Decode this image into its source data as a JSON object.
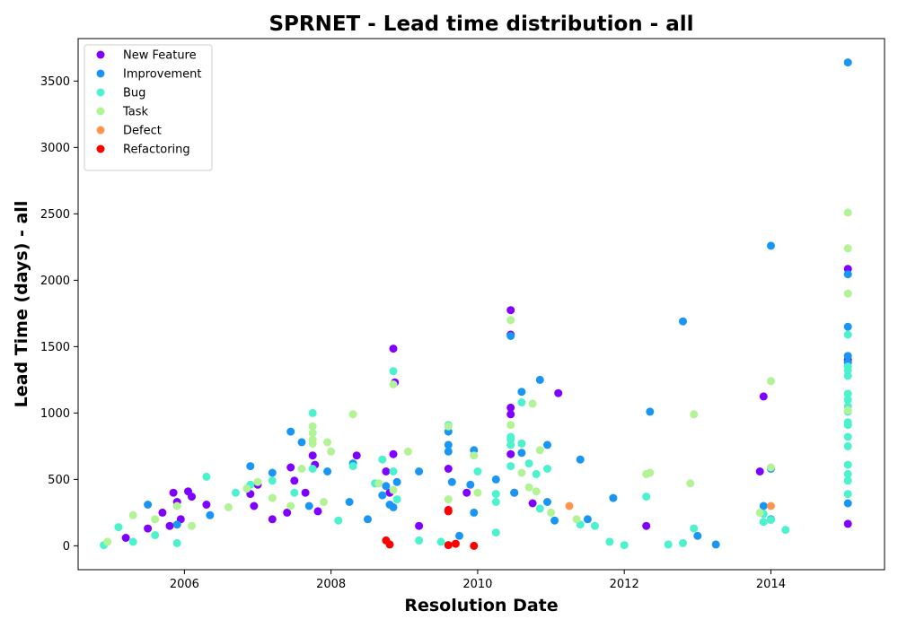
{
  "chart_data": {
    "type": "scatter",
    "title": "SPRNET - Lead time distribution - all",
    "xlabel": "Resolution Date",
    "ylabel": "Lead Time (days) - all",
    "xlim": [
      2004.55,
      2015.55
    ],
    "ylim": [
      -180,
      3820
    ],
    "x_ticks": [
      2006,
      2008,
      2010,
      2012,
      2014
    ],
    "y_ticks": [
      0,
      500,
      1000,
      1500,
      2000,
      2500,
      3000,
      3500
    ],
    "grid": false,
    "legend_position": "top-left",
    "series": [
      {
        "name": "New Feature",
        "color": "#8000ff",
        "points": [
          [
            2005.2,
            60
          ],
          [
            2005.5,
            130
          ],
          [
            2005.7,
            250
          ],
          [
            2005.8,
            150
          ],
          [
            2005.85,
            400
          ],
          [
            2005.9,
            330
          ],
          [
            2005.95,
            200
          ],
          [
            2006.05,
            410
          ],
          [
            2006.1,
            370
          ],
          [
            2006.3,
            310
          ],
          [
            2006.9,
            390
          ],
          [
            2006.95,
            300
          ],
          [
            2007.0,
            460
          ],
          [
            2007.2,
            200
          ],
          [
            2007.4,
            250
          ],
          [
            2007.45,
            590
          ],
          [
            2007.5,
            490
          ],
          [
            2007.65,
            400
          ],
          [
            2007.75,
            680
          ],
          [
            2007.78,
            610
          ],
          [
            2007.82,
            260
          ],
          [
            2008.35,
            680
          ],
          [
            2008.75,
            560
          ],
          [
            2008.8,
            400
          ],
          [
            2008.85,
            1485
          ],
          [
            2008.85,
            690
          ],
          [
            2008.87,
            1230
          ],
          [
            2009.2,
            150
          ],
          [
            2009.6,
            580
          ],
          [
            2009.85,
            400
          ],
          [
            2010.45,
            1775
          ],
          [
            2010.45,
            1590
          ],
          [
            2010.45,
            1040
          ],
          [
            2010.45,
            990
          ],
          [
            2010.45,
            690
          ],
          [
            2010.5,
            400
          ],
          [
            2010.75,
            320
          ],
          [
            2011.1,
            1150
          ],
          [
            2012.3,
            150
          ],
          [
            2013.9,
            1125
          ],
          [
            2013.85,
            560
          ],
          [
            2015.05,
            2085
          ],
          [
            2015.05,
            1400
          ],
          [
            2015.05,
            165
          ]
        ]
      },
      {
        "name": "Improvement",
        "color": "#1996f3",
        "points": [
          [
            2005.5,
            310
          ],
          [
            2005.9,
            160
          ],
          [
            2006.35,
            230
          ],
          [
            2006.9,
            600
          ],
          [
            2007.2,
            550
          ],
          [
            2007.45,
            860
          ],
          [
            2007.6,
            780
          ],
          [
            2007.7,
            300
          ],
          [
            2007.95,
            560
          ],
          [
            2008.25,
            330
          ],
          [
            2008.3,
            620
          ],
          [
            2008.5,
            200
          ],
          [
            2008.7,
            380
          ],
          [
            2008.75,
            450
          ],
          [
            2008.8,
            310
          ],
          [
            2008.85,
            290
          ],
          [
            2008.9,
            480
          ],
          [
            2009.2,
            560
          ],
          [
            2009.6,
            860
          ],
          [
            2009.6,
            760
          ],
          [
            2009.6,
            710
          ],
          [
            2009.65,
            480
          ],
          [
            2009.75,
            75
          ],
          [
            2009.9,
            460
          ],
          [
            2009.95,
            250
          ],
          [
            2009.95,
            720
          ],
          [
            2010.25,
            500
          ],
          [
            2010.45,
            1580
          ],
          [
            2010.5,
            400
          ],
          [
            2010.6,
            1160
          ],
          [
            2010.6,
            700
          ],
          [
            2010.85,
            1250
          ],
          [
            2010.95,
            760
          ],
          [
            2010.95,
            330
          ],
          [
            2011.05,
            190
          ],
          [
            2011.4,
            650
          ],
          [
            2011.5,
            200
          ],
          [
            2011.85,
            360
          ],
          [
            2012.35,
            1010
          ],
          [
            2012.8,
            1690
          ],
          [
            2013.0,
            75
          ],
          [
            2013.25,
            10
          ],
          [
            2013.9,
            300
          ],
          [
            2014.0,
            2260
          ],
          [
            2014.0,
            580
          ],
          [
            2014.0,
            200
          ],
          [
            2015.05,
            3640
          ],
          [
            2015.05,
            2045
          ],
          [
            2015.05,
            1650
          ],
          [
            2015.05,
            1430
          ],
          [
            2015.05,
            1380
          ],
          [
            2015.05,
            320
          ]
        ]
      },
      {
        "name": "Bug",
        "color": "#4cf2ce",
        "points": [
          [
            2004.9,
            5
          ],
          [
            2005.1,
            140
          ],
          [
            2005.3,
            30
          ],
          [
            2005.6,
            80
          ],
          [
            2005.9,
            20
          ],
          [
            2006.3,
            520
          ],
          [
            2006.7,
            400
          ],
          [
            2006.9,
            460
          ],
          [
            2007.2,
            490
          ],
          [
            2007.5,
            400
          ],
          [
            2007.75,
            1000
          ],
          [
            2007.75,
            580
          ],
          [
            2008.1,
            190
          ],
          [
            2008.3,
            600
          ],
          [
            2008.6,
            470
          ],
          [
            2008.7,
            650
          ],
          [
            2008.85,
            1315
          ],
          [
            2008.85,
            560
          ],
          [
            2008.9,
            350
          ],
          [
            2009.2,
            40
          ],
          [
            2009.5,
            30
          ],
          [
            2009.6,
            910
          ],
          [
            2010.0,
            560
          ],
          [
            2010.25,
            390
          ],
          [
            2010.25,
            330
          ],
          [
            2010.25,
            100
          ],
          [
            2010.45,
            820
          ],
          [
            2010.45,
            800
          ],
          [
            2010.45,
            760
          ],
          [
            2010.45,
            600
          ],
          [
            2010.6,
            770
          ],
          [
            2010.6,
            1080
          ],
          [
            2010.7,
            620
          ],
          [
            2010.8,
            540
          ],
          [
            2010.85,
            280
          ],
          [
            2010.95,
            580
          ],
          [
            2011.4,
            160
          ],
          [
            2011.6,
            150
          ],
          [
            2011.8,
            30
          ],
          [
            2012.0,
            5
          ],
          [
            2012.3,
            370
          ],
          [
            2012.6,
            10
          ],
          [
            2012.8,
            20
          ],
          [
            2012.95,
            130
          ],
          [
            2013.9,
            240
          ],
          [
            2013.9,
            180
          ],
          [
            2014.0,
            195
          ],
          [
            2014.2,
            120
          ],
          [
            2015.05,
            1590
          ],
          [
            2015.05,
            1350
          ],
          [
            2015.05,
            1320
          ],
          [
            2015.05,
            1280
          ],
          [
            2015.05,
            1145
          ],
          [
            2015.05,
            1100
          ],
          [
            2015.05,
            1050
          ],
          [
            2015.05,
            1010
          ],
          [
            2015.05,
            930
          ],
          [
            2015.05,
            910
          ],
          [
            2015.05,
            820
          ],
          [
            2015.05,
            750
          ],
          [
            2015.05,
            610
          ],
          [
            2015.05,
            540
          ],
          [
            2015.05,
            490
          ],
          [
            2015.05,
            390
          ]
        ]
      },
      {
        "name": "Task",
        "color": "#b2f396",
        "points": [
          [
            2004.95,
            30
          ],
          [
            2005.3,
            230
          ],
          [
            2005.6,
            200
          ],
          [
            2005.9,
            300
          ],
          [
            2006.1,
            150
          ],
          [
            2006.6,
            290
          ],
          [
            2006.85,
            430
          ],
          [
            2007.0,
            480
          ],
          [
            2007.2,
            360
          ],
          [
            2007.45,
            300
          ],
          [
            2007.6,
            580
          ],
          [
            2007.75,
            900
          ],
          [
            2007.75,
            850
          ],
          [
            2007.75,
            800
          ],
          [
            2007.75,
            770
          ],
          [
            2007.9,
            330
          ],
          [
            2007.95,
            780
          ],
          [
            2008.0,
            710
          ],
          [
            2008.3,
            990
          ],
          [
            2008.65,
            470
          ],
          [
            2008.85,
            1215
          ],
          [
            2008.85,
            420
          ],
          [
            2009.05,
            710
          ],
          [
            2009.6,
            900
          ],
          [
            2009.6,
            350
          ],
          [
            2009.95,
            680
          ],
          [
            2010.0,
            400
          ],
          [
            2010.45,
            1700
          ],
          [
            2010.45,
            910
          ],
          [
            2010.6,
            550
          ],
          [
            2010.7,
            440
          ],
          [
            2010.75,
            1070
          ],
          [
            2010.8,
            410
          ],
          [
            2010.85,
            720
          ],
          [
            2011.0,
            250
          ],
          [
            2011.35,
            200
          ],
          [
            2012.3,
            540
          ],
          [
            2012.35,
            550
          ],
          [
            2012.95,
            990
          ],
          [
            2012.9,
            470
          ],
          [
            2013.85,
            250
          ],
          [
            2014.0,
            1240
          ],
          [
            2014.0,
            590
          ],
          [
            2015.05,
            2510
          ],
          [
            2015.05,
            2240
          ],
          [
            2015.05,
            1900
          ],
          [
            2015.05,
            1020
          ]
        ]
      },
      {
        "name": "Defect",
        "color": "#ff954e",
        "points": [
          [
            2011.25,
            300
          ],
          [
            2014.0,
            300
          ]
        ]
      },
      {
        "name": "Refactoring",
        "color": "#ff0000",
        "points": [
          [
            2008.75,
            40
          ],
          [
            2008.8,
            10
          ],
          [
            2009.6,
            270
          ],
          [
            2009.6,
            260
          ],
          [
            2009.6,
            5
          ],
          [
            2009.7,
            15
          ],
          [
            2009.95,
            0
          ]
        ]
      }
    ]
  }
}
